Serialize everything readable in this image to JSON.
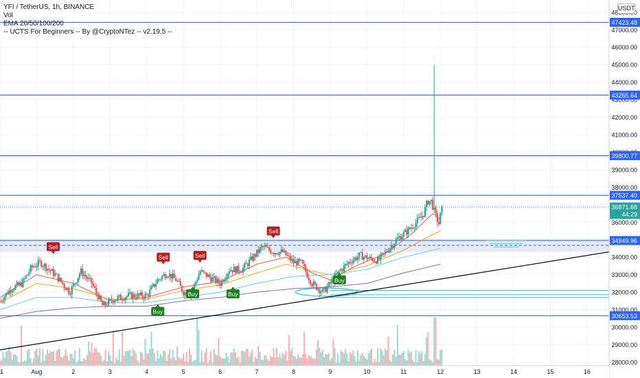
{
  "legend": {
    "symbol": "YFI / TetherUS, 1h, BINANCE",
    "volume": "Vol",
    "ema": "EMA 20/50/100/200",
    "indicator": "-- UCTS For Beginners -- By @CryptoNTez -- v2.19.5 --"
  },
  "currency_button": "USDT",
  "colors": {
    "up": "#26a69a",
    "down": "#ef5350",
    "hline": "#2962ff",
    "trend": "#131722",
    "ema20": "#f44336",
    "ema50": "#ff9800",
    "ema100": "#4dd0e1",
    "ema200": "#7e57c2",
    "sell": "#b71c1c",
    "buy": "#1b7f1b",
    "zone": "#dce3f6",
    "last": "#26a69a"
  },
  "chart_data": {
    "type": "candlestick",
    "y_axis": {
      "range": [
        27800,
        48700
      ],
      "ticks": [
        28000,
        29000,
        30000,
        31000,
        32000,
        33000,
        34000,
        35000,
        36000,
        37000,
        38000,
        39000,
        40000,
        41000,
        42000,
        43000,
        44000,
        45000,
        46000,
        47000,
        48000
      ],
      "tick_labels": [
        "28000.00",
        "29000.00",
        "30000.00",
        "31000.00",
        "32000.00",
        "33000.00",
        "34000.00",
        "35000.00",
        "36000.00",
        "37000.00",
        "38000.00",
        "39000.00",
        "40000.00",
        "41000.00",
        "42000.00",
        "43000.00",
        "44000.00",
        "45000.00",
        "46000.00",
        "47000.00",
        "48000.00"
      ]
    },
    "x_axis": {
      "range": [
        31.0,
        47.6
      ],
      "ticks": [
        {
          "x": 31,
          "label": "31"
        },
        {
          "x": 32,
          "label": "Aug"
        },
        {
          "x": 33,
          "label": "2"
        },
        {
          "x": 34,
          "label": "3"
        },
        {
          "x": 35,
          "label": "4"
        },
        {
          "x": 36,
          "label": "5"
        },
        {
          "x": 37,
          "label": "6"
        },
        {
          "x": 38,
          "label": "7"
        },
        {
          "x": 39,
          "label": "8"
        },
        {
          "x": 40,
          "label": "9"
        },
        {
          "x": 41,
          "label": "10"
        },
        {
          "x": 42,
          "label": "11"
        },
        {
          "x": 43,
          "label": "12"
        },
        {
          "x": 44,
          "label": "13"
        },
        {
          "x": 45,
          "label": "14"
        },
        {
          "x": 46,
          "label": "15"
        },
        {
          "x": 47,
          "label": "16"
        }
      ]
    },
    "price_path": [
      [
        31.0,
        31500
      ],
      [
        31.3,
        32200
      ],
      [
        31.6,
        32500
      ],
      [
        31.85,
        33400
      ],
      [
        32.1,
        33700
      ],
      [
        32.5,
        33000
      ],
      [
        32.9,
        32000
      ],
      [
        33.2,
        33200
      ],
      [
        33.5,
        32500
      ],
      [
        33.8,
        31200
      ],
      [
        34.1,
        31600
      ],
      [
        34.5,
        31800
      ],
      [
        35.0,
        31800
      ],
      [
        35.3,
        32700
      ],
      [
        35.55,
        33100
      ],
      [
        35.8,
        32700
      ],
      [
        36.0,
        32000
      ],
      [
        36.2,
        31900
      ],
      [
        36.45,
        33200
      ],
      [
        36.75,
        32800
      ],
      [
        37.0,
        32500
      ],
      [
        37.25,
        33300
      ],
      [
        37.6,
        33300
      ],
      [
        37.9,
        34000
      ],
      [
        38.15,
        34600
      ],
      [
        38.45,
        34300
      ],
      [
        38.7,
        34300
      ],
      [
        39.0,
        33700
      ],
      [
        39.2,
        33700
      ],
      [
        39.5,
        32500
      ],
      [
        39.8,
        32000
      ],
      [
        40.0,
        32500
      ],
      [
        40.25,
        33200
      ],
      [
        40.5,
        33700
      ],
      [
        40.8,
        34100
      ],
      [
        41.1,
        33900
      ],
      [
        41.3,
        33800
      ],
      [
        41.6,
        34500
      ],
      [
        41.85,
        35100
      ],
      [
        42.1,
        35500
      ],
      [
        42.35,
        36000
      ],
      [
        42.55,
        36500
      ],
      [
        42.65,
        37200
      ],
      [
        42.75,
        37200
      ],
      [
        42.88,
        36300
      ],
      [
        42.96,
        35900
      ],
      [
        43.0,
        36400
      ],
      [
        43.06,
        36871
      ]
    ],
    "spike": {
      "x": 42.82,
      "high": 45000
    },
    "ema_series": [
      {
        "key": "ema20",
        "values": [
          [
            31.0,
            31700
          ],
          [
            32.0,
            33000
          ],
          [
            33.0,
            32500
          ],
          [
            34.0,
            31500
          ],
          [
            35.0,
            31700
          ],
          [
            36.0,
            32300
          ],
          [
            37.0,
            32600
          ],
          [
            38.0,
            33600
          ],
          [
            38.8,
            34000
          ],
          [
            39.5,
            33100
          ],
          [
            40.0,
            32700
          ],
          [
            40.7,
            33500
          ],
          [
            41.5,
            34200
          ],
          [
            42.2,
            35300
          ],
          [
            42.8,
            36500
          ],
          [
            43.0,
            36200
          ]
        ]
      },
      {
        "key": "ema50",
        "values": [
          [
            31.0,
            31400
          ],
          [
            32.0,
            32500
          ],
          [
            33.0,
            32200
          ],
          [
            34.0,
            31600
          ],
          [
            35.0,
            31600
          ],
          [
            36.0,
            32100
          ],
          [
            37.0,
            32400
          ],
          [
            38.0,
            33100
          ],
          [
            38.8,
            33600
          ],
          [
            39.5,
            33200
          ],
          [
            40.0,
            33000
          ],
          [
            41.0,
            33500
          ],
          [
            42.0,
            34400
          ],
          [
            42.8,
            35300
          ],
          [
            43.0,
            35500
          ]
        ]
      },
      {
        "key": "ema100",
        "values": [
          [
            31.0,
            31000
          ],
          [
            32.0,
            31700
          ],
          [
            33.0,
            31700
          ],
          [
            34.0,
            31400
          ],
          [
            35.0,
            31400
          ],
          [
            36.0,
            31700
          ],
          [
            37.0,
            32000
          ],
          [
            38.0,
            32500
          ],
          [
            39.0,
            32900
          ],
          [
            40.0,
            33000
          ],
          [
            41.0,
            33300
          ],
          [
            42.0,
            34000
          ],
          [
            43.0,
            34500
          ]
        ]
      },
      {
        "key": "ema200",
        "values": [
          [
            31.0,
            30500
          ],
          [
            32.0,
            30900
          ],
          [
            33.0,
            31100
          ],
          [
            34.0,
            31200
          ],
          [
            35.0,
            31200
          ],
          [
            36.0,
            31500
          ],
          [
            37.0,
            31700
          ],
          [
            38.0,
            32000
          ],
          [
            39.0,
            32200
          ],
          [
            40.0,
            32300
          ],
          [
            41.0,
            32500
          ],
          [
            42.0,
            33100
          ],
          [
            43.0,
            33600
          ]
        ]
      }
    ],
    "horizontal_levels": [
      {
        "value": 47423.48,
        "label": "47423.48"
      },
      {
        "value": 43265.64,
        "label": "43265.64"
      },
      {
        "value": 39800.77,
        "label": "39800.77"
      },
      {
        "value": 37537.4,
        "label": "37537.40"
      },
      {
        "value": 34949.96,
        "label": "34949.96"
      },
      {
        "value": 30653.53,
        "label": "30653.53"
      }
    ],
    "zone": {
      "from": 34300,
      "to": 35050
    },
    "last_price": {
      "value": 36871.68,
      "label": "36871.68",
      "countdown": "44:29"
    },
    "trendline": [
      [
        31.0,
        28700
      ],
      [
        47.6,
        34300
      ]
    ],
    "signals": [
      {
        "type": "sell",
        "label": "Sell",
        "x": 32.45,
        "price": 34600
      },
      {
        "type": "sell",
        "label": "Sell",
        "x": 35.45,
        "price": 34000
      },
      {
        "type": "sell",
        "label": "Sell",
        "x": 36.45,
        "price": 34100
      },
      {
        "type": "sell",
        "label": "Sell",
        "x": 38.45,
        "price": 35500
      },
      {
        "type": "buy",
        "label": "Buy",
        "x": 35.3,
        "price": 30900
      },
      {
        "type": "buy",
        "label": "Buy",
        "x": 36.25,
        "price": 31900
      },
      {
        "type": "buy",
        "label": "Buy",
        "x": 37.35,
        "price": 31900
      },
      {
        "type": "buy",
        "label": "Buy",
        "x": 40.25,
        "price": 32700
      }
    ]
  }
}
